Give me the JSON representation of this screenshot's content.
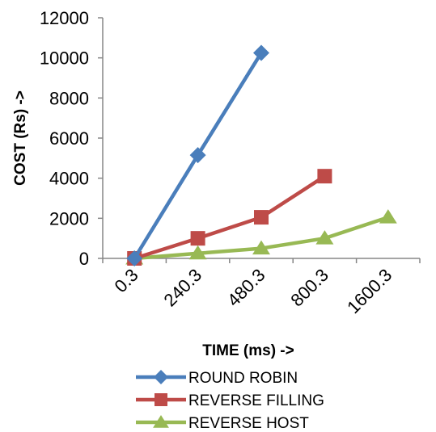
{
  "chart_data": {
    "type": "line",
    "categories": [
      "0.3",
      "240.3",
      "480.3",
      "800.3",
      "1600.3"
    ],
    "xlabel": "TIME (ms)  ->",
    "ylabel": "COST (Rs)  ->",
    "ylim": [
      0,
      12000
    ],
    "yticks": [
      "0",
      "2000",
      "4000",
      "6000",
      "8000",
      "10000",
      "12000"
    ],
    "grid": false,
    "legend_position": "bottom",
    "series": [
      {
        "name": "ROUND ROBIN",
        "color": "#4A7EBB",
        "marker": "diamond",
        "values": [
          0,
          5150,
          10250,
          null,
          null
        ]
      },
      {
        "name": "REVERSE FILLING",
        "color": "#BE4B48",
        "marker": "square",
        "values": [
          0,
          1000,
          2050,
          4100,
          null
        ]
      },
      {
        "name": "REVERSE HOST",
        "color": "#98B954",
        "marker": "triangle",
        "values": [
          0,
          250,
          500,
          1000,
          2050
        ]
      }
    ]
  }
}
